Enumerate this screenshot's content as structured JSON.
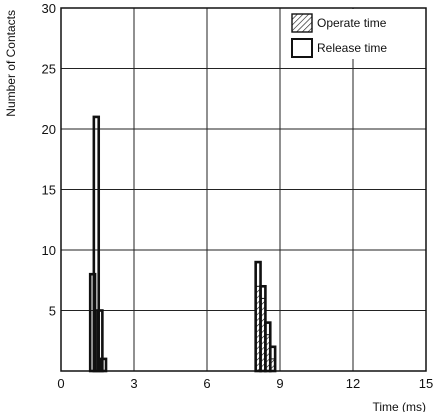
{
  "chart_data": {
    "type": "bar",
    "ylabel": "Number of Contacts",
    "xlabel": "Time (ms)",
    "xlim": [
      0,
      15
    ],
    "ylim": [
      0,
      30
    ],
    "x_ticks": [
      0,
      3,
      6,
      9,
      12,
      15
    ],
    "y_ticks": [
      5,
      10,
      15,
      20,
      25,
      30
    ],
    "x_tick_labels": [
      "0",
      "3",
      "6",
      "9",
      "12",
      "15"
    ],
    "y_tick_labels": [
      "5",
      "10",
      "15",
      "20",
      "25",
      "30"
    ],
    "grid": true,
    "legend_position": "top-right",
    "bin_width": 0.2,
    "series": [
      {
        "name": "Operate time",
        "style": "hatched",
        "bins": [
          {
            "x": 8.1,
            "value": 7
          },
          {
            "x": 8.3,
            "value": 6
          },
          {
            "x": 8.5,
            "value": 3
          },
          {
            "x": 8.7,
            "value": 1
          }
        ]
      },
      {
        "name": "Release time",
        "style": "outline",
        "bins": [
          {
            "x": 1.3,
            "value": 8
          },
          {
            "x": 1.45,
            "value": 21
          },
          {
            "x": 1.6,
            "value": 5
          },
          {
            "x": 1.75,
            "value": 1
          },
          {
            "x": 8.1,
            "value": 9
          },
          {
            "x": 8.3,
            "value": 7
          },
          {
            "x": 8.5,
            "value": 4
          },
          {
            "x": 8.7,
            "value": 2
          }
        ]
      }
    ]
  }
}
